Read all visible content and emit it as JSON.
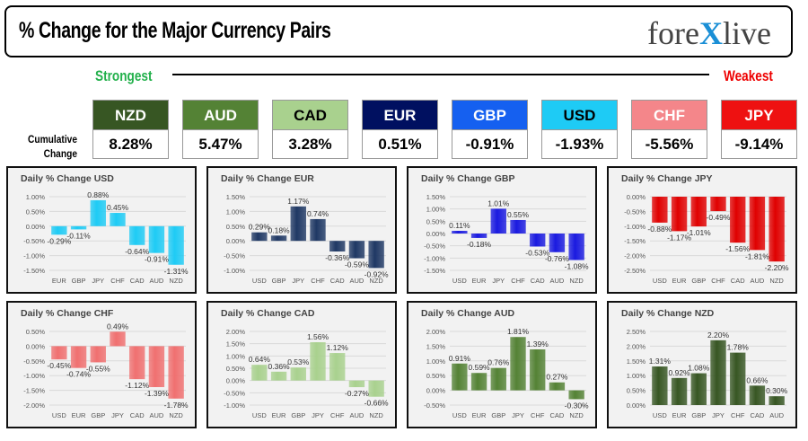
{
  "header": {
    "title": "% Change for the Major Currency Pairs",
    "logo_text": "forexlive"
  },
  "ranking": {
    "strongest": "Strongest",
    "weakest": "Weakest",
    "row_label_1": "Cumulative",
    "row_label_2": "Change",
    "currencies": [
      {
        "code": "NZD",
        "value": "8.28%",
        "bg": "#375623",
        "fg": "#ffffff"
      },
      {
        "code": "AUD",
        "value": "5.47%",
        "bg": "#548235",
        "fg": "#ffffff"
      },
      {
        "code": "CAD",
        "value": "3.28%",
        "bg": "#a9d18e",
        "fg": "#000000"
      },
      {
        "code": "EUR",
        "value": "0.51%",
        "bg": "#001060",
        "fg": "#ffffff"
      },
      {
        "code": "GBP",
        "value": "-0.91%",
        "bg": "#1560f0",
        "fg": "#ffffff"
      },
      {
        "code": "USD",
        "value": "-1.93%",
        "bg": "#1ecbf5",
        "fg": "#000000"
      },
      {
        "code": "CHF",
        "value": "-5.56%",
        "bg": "#f4868a",
        "fg": "#ffffff"
      },
      {
        "code": "JPY",
        "value": "-9.14%",
        "bg": "#ee1111",
        "fg": "#ffffff"
      }
    ]
  },
  "chart_data": [
    {
      "type": "bar",
      "title": "Daily % Change USD",
      "categories": [
        "EUR",
        "GBP",
        "JPY",
        "CHF",
        "CAD",
        "AUD",
        "NZD"
      ],
      "values": [
        -0.29,
        -0.11,
        0.88,
        0.45,
        -0.64,
        -0.91,
        -1.31
      ],
      "ylim": [
        -1.5,
        1.0
      ],
      "yticks": [
        "-1.50%",
        "-1.00%",
        "-0.50%",
        "0.00%",
        "0.50%",
        "1.00%"
      ],
      "color": "#1ecbf5",
      "grid": true
    },
    {
      "type": "bar",
      "title": "Daily % Change EUR",
      "categories": [
        "USD",
        "GBP",
        "JPY",
        "CHF",
        "CAD",
        "AUD",
        "NZD"
      ],
      "values": [
        0.29,
        0.18,
        1.17,
        0.74,
        -0.36,
        -0.59,
        -0.92
      ],
      "ylim": [
        -1.0,
        1.5
      ],
      "yticks": [
        "-1.00%",
        "-0.50%",
        "0.00%",
        "0.50%",
        "1.00%",
        "1.50%"
      ],
      "color": "#1f3864",
      "grid": true
    },
    {
      "type": "bar",
      "title": "Daily % Change GBP",
      "categories": [
        "USD",
        "EUR",
        "JPY",
        "CHF",
        "CAD",
        "AUD",
        "NZD"
      ],
      "values": [
        0.11,
        -0.18,
        1.01,
        0.55,
        -0.53,
        -0.76,
        -1.08
      ],
      "ylim": [
        -1.5,
        1.5
      ],
      "yticks": [
        "-1.50%",
        "-1.00%",
        "-0.50%",
        "0.00%",
        "0.50%",
        "1.00%",
        "1.50%"
      ],
      "color": "#1a1ae0",
      "grid": true
    },
    {
      "type": "bar",
      "title": "Daily % Change JPY",
      "categories": [
        "USD",
        "EUR",
        "GBP",
        "CHF",
        "CAD",
        "AUD",
        "NZD"
      ],
      "values": [
        -0.88,
        -1.17,
        -1.01,
        -0.49,
        -1.56,
        -1.81,
        -2.2
      ],
      "ylim": [
        -2.5,
        0.0
      ],
      "yticks": [
        "-2.50%",
        "-2.00%",
        "-1.50%",
        "-1.00%",
        "-0.50%",
        "0.00%"
      ],
      "color": "#e00000",
      "grid": true
    },
    {
      "type": "bar",
      "title": "Daily % Change CHF",
      "categories": [
        "USD",
        "EUR",
        "GBP",
        "JPY",
        "CAD",
        "AUD",
        "NZD"
      ],
      "values": [
        -0.45,
        -0.74,
        -0.55,
        0.49,
        -1.12,
        -1.39,
        -1.78
      ],
      "ylim": [
        -2.0,
        0.5
      ],
      "yticks": [
        "-2.00%",
        "-1.50%",
        "-1.00%",
        "-0.50%",
        "0.00%",
        "0.50%"
      ],
      "color": "#f07070",
      "grid": true
    },
    {
      "type": "bar",
      "title": "Daily % Change CAD",
      "categories": [
        "USD",
        "EUR",
        "GBP",
        "JPY",
        "CHF",
        "AUD",
        "NZD"
      ],
      "values": [
        0.64,
        0.36,
        0.53,
        1.56,
        1.12,
        -0.27,
        -0.66
      ],
      "ylim": [
        -1.0,
        2.0
      ],
      "yticks": [
        "-1.00%",
        "-0.50%",
        "0.00%",
        "0.50%",
        "1.00%",
        "1.50%",
        "2.00%"
      ],
      "color": "#a9d18e",
      "grid": true
    },
    {
      "type": "bar",
      "title": "Daily % Change AUD",
      "categories": [
        "USD",
        "EUR",
        "GBP",
        "JPY",
        "CHF",
        "CAD",
        "NZD"
      ],
      "values": [
        0.91,
        0.59,
        0.76,
        1.81,
        1.39,
        0.27,
        -0.3
      ],
      "ylim": [
        -0.5,
        2.0
      ],
      "yticks": [
        "-0.50%",
        "0.00%",
        "0.50%",
        "1.00%",
        "1.50%",
        "2.00%"
      ],
      "color": "#548235",
      "grid": true
    },
    {
      "type": "bar",
      "title": "Daily % Change NZD",
      "categories": [
        "USD",
        "EUR",
        "GBP",
        "JPY",
        "CHF",
        "CAD",
        "AUD"
      ],
      "values": [
        1.31,
        0.92,
        1.08,
        2.2,
        1.78,
        0.66,
        0.3
      ],
      "ylim": [
        0.0,
        2.5
      ],
      "yticks": [
        "0.00%",
        "0.50%",
        "1.00%",
        "1.50%",
        "2.00%",
        "2.50%"
      ],
      "color": "#375623",
      "grid": true
    }
  ]
}
